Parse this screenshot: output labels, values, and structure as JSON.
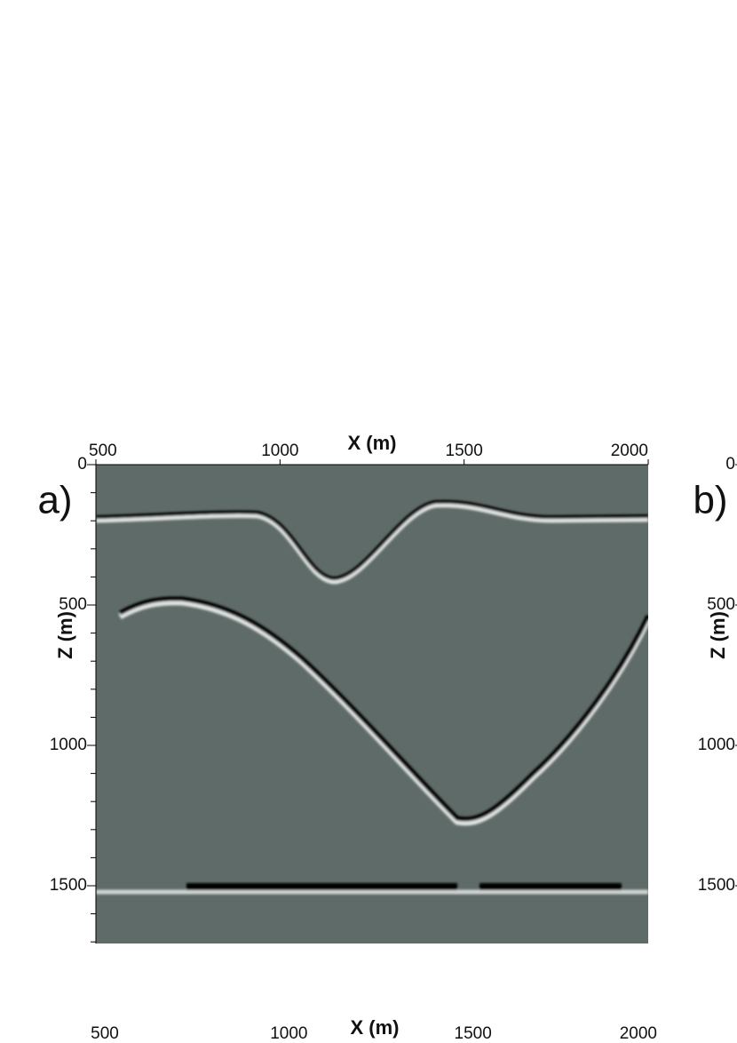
{
  "panels": [
    {
      "label": "a)",
      "x_axis": {
        "title": "X (m)",
        "ticks": [
          500,
          1000,
          1500,
          2000
        ]
      },
      "z_axis": {
        "title": "Z (m)",
        "ticks": [
          0,
          500,
          1000,
          1500
        ]
      }
    },
    {
      "label": "b)",
      "z_axis": {
        "title": "Z (m)",
        "ticks": [
          0,
          500,
          1000,
          1500
        ]
      }
    }
  ],
  "bottom_axis": {
    "title": "X (m)",
    "ticks": [
      500,
      1000,
      1500,
      2000
    ]
  }
}
